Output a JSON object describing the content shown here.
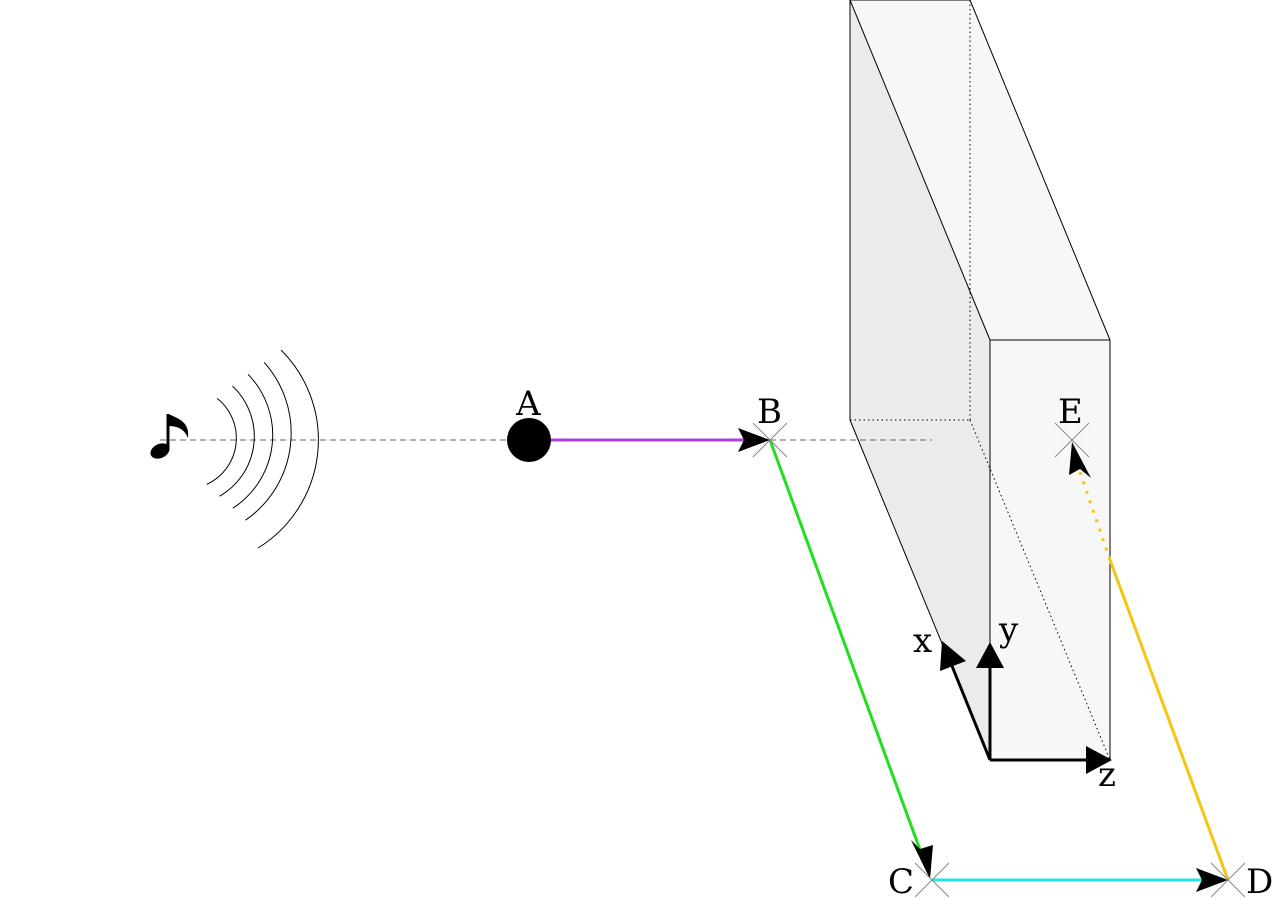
{
  "points": {
    "A": "A",
    "B": "B",
    "C": "C",
    "D": "D",
    "E": "E"
  },
  "axes": {
    "x": "x",
    "y": "y",
    "z": "z"
  },
  "sound_source_icon": "musical-note-icon",
  "colors": {
    "path_A_B": "#b13de0",
    "path_B_C": "#1fe01f",
    "path_C_D": "#22e6e6",
    "path_D_E": "#f5c60f",
    "slab_front": "#f7f7f7",
    "slab_side": "#ebebeb",
    "guide_line": "#666666"
  }
}
